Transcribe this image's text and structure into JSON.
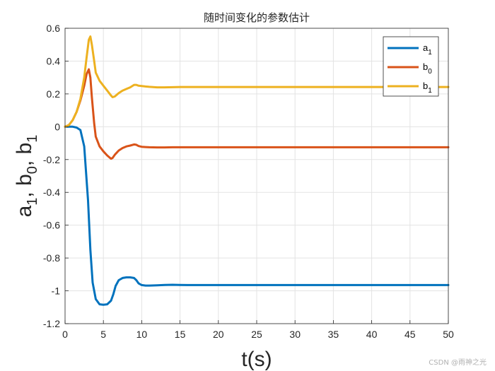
{
  "chart_data": {
    "type": "line",
    "title": "随时间变化的参数估计",
    "xlabel": "t(s)",
    "ylabel": {
      "parts": [
        "a",
        "1",
        ", b",
        "0",
        ", b",
        "1"
      ]
    },
    "xlim": [
      0,
      50
    ],
    "ylim": [
      -1.2,
      0.6
    ],
    "xticks": [
      0,
      5,
      10,
      15,
      20,
      25,
      30,
      35,
      40,
      45,
      50
    ],
    "yticks": [
      0.6,
      0.4,
      0.2,
      0,
      -0.2,
      -0.4,
      -0.6,
      -0.8,
      -1,
      -1.2
    ],
    "xtick_labels": [
      "0",
      "5",
      "10",
      "15",
      "20",
      "25",
      "30",
      "35",
      "40",
      "45",
      "50"
    ],
    "ytick_labels": [
      "0.6",
      "0.4",
      "0.2",
      "0",
      "-0.2",
      "-0.4",
      "-0.6",
      "-0.8",
      "-1",
      "-1.2"
    ],
    "grid": true,
    "legend_position": "top-right",
    "series": [
      {
        "name": "a",
        "sub": "1",
        "color": "#0072BD",
        "x": [
          0,
          0.5,
          1,
          1.5,
          2,
          2.5,
          3,
          3.3,
          3.6,
          4,
          4.5,
          5,
          5.5,
          6,
          6.3,
          6.6,
          7,
          7.5,
          8,
          8.5,
          9,
          9.3,
          9.6,
          10,
          10.5,
          11,
          12,
          13,
          14,
          15,
          16,
          20,
          30,
          40,
          50
        ],
        "y": [
          0,
          0,
          0,
          -0.005,
          -0.02,
          -0.12,
          -0.45,
          -0.75,
          -0.95,
          -1.05,
          -1.082,
          -1.085,
          -1.082,
          -1.06,
          -1.02,
          -0.97,
          -0.935,
          -0.922,
          -0.918,
          -0.918,
          -0.922,
          -0.935,
          -0.955,
          -0.965,
          -0.968,
          -0.968,
          -0.966,
          -0.964,
          -0.963,
          -0.964,
          -0.965,
          -0.965,
          -0.965,
          -0.965,
          -0.965
        ]
      },
      {
        "name": "b",
        "sub": "0",
        "color": "#D95319",
        "x": [
          0,
          0.5,
          1,
          1.5,
          2,
          2.5,
          2.8,
          3.1,
          3.3,
          3.5,
          3.8,
          4,
          4.5,
          5,
          5.5,
          6,
          6.2,
          6.5,
          7,
          7.5,
          8,
          8.5,
          9,
          9.3,
          9.6,
          10,
          10.5,
          11,
          12,
          13,
          14,
          15,
          16,
          20,
          30,
          40,
          50
        ],
        "y": [
          0,
          0.01,
          0.04,
          0.09,
          0.16,
          0.25,
          0.32,
          0.35,
          0.3,
          0.18,
          0.02,
          -0.06,
          -0.12,
          -0.15,
          -0.175,
          -0.195,
          -0.19,
          -0.17,
          -0.145,
          -0.13,
          -0.12,
          -0.115,
          -0.108,
          -0.11,
          -0.118,
          -0.122,
          -0.124,
          -0.125,
          -0.126,
          -0.126,
          -0.125,
          -0.125,
          -0.125,
          -0.125,
          -0.125,
          -0.125,
          -0.125
        ]
      },
      {
        "name": "b",
        "sub": "1",
        "color": "#EDB120",
        "x": [
          0,
          0.5,
          1,
          1.5,
          2,
          2.5,
          2.8,
          3.1,
          3.3,
          3.5,
          3.8,
          4,
          4.5,
          5,
          5.5,
          6,
          6.2,
          6.5,
          7,
          7.5,
          8,
          8.5,
          9,
          9.3,
          9.6,
          10,
          10.5,
          11,
          12,
          13,
          14,
          15,
          16,
          20,
          30,
          40,
          50
        ],
        "y": [
          0,
          0.01,
          0.04,
          0.09,
          0.17,
          0.3,
          0.42,
          0.53,
          0.55,
          0.5,
          0.4,
          0.33,
          0.28,
          0.25,
          0.22,
          0.19,
          0.18,
          0.185,
          0.205,
          0.22,
          0.23,
          0.24,
          0.255,
          0.255,
          0.25,
          0.248,
          0.245,
          0.243,
          0.24,
          0.24,
          0.241,
          0.242,
          0.242,
          0.242,
          0.242,
          0.242,
          0.242
        ]
      }
    ]
  },
  "watermark": "CSDN @雨神之光"
}
